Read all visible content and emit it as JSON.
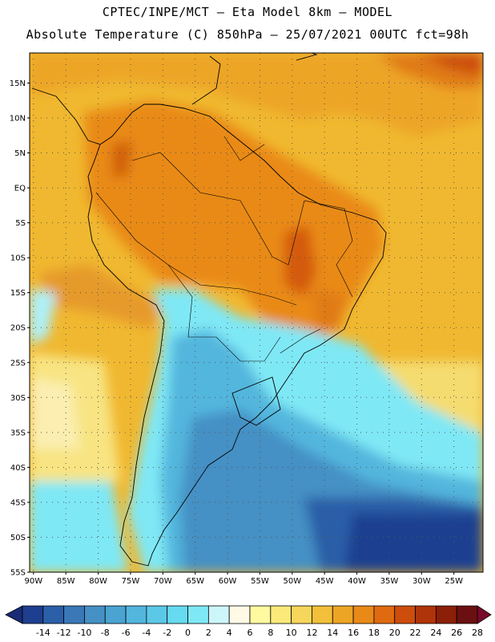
{
  "title_line1": "CPTEC/INPE/MCT –  Eta Model 8km – MODEL",
  "title_line2": "Absolute Temperature (C) 850hPa – 25/07/2021 00UTC fct=98h",
  "lat_labels": [
    "15N",
    "10N",
    "5N",
    "EQ",
    "5S",
    "10S",
    "15S",
    "20S",
    "25S",
    "30S",
    "35S",
    "40S",
    "45S",
    "50S",
    "55S"
  ],
  "lat_values": [
    15,
    10,
    5,
    0,
    -5,
    -10,
    -15,
    -20,
    -25,
    -30,
    -35,
    -40,
    -45,
    -50,
    -55
  ],
  "lon_labels": [
    "90W",
    "85W",
    "80W",
    "75W",
    "70W",
    "65W",
    "60W",
    "55W",
    "50W",
    "45W",
    "40W",
    "35W",
    "30W",
    "25W"
  ],
  "lon_values": [
    -90,
    -85,
    -80,
    -75,
    -70,
    -65,
    -60,
    -55,
    -50,
    -45,
    -40,
    -35,
    -30,
    -25
  ],
  "colorbar": {
    "labels": [
      "-14",
      "-12",
      "-10",
      "-8",
      "-6",
      "-4",
      "-2",
      "0",
      "2",
      "4",
      "6",
      "8",
      "10",
      "12",
      "14",
      "16",
      "18",
      "20",
      "22",
      "24",
      "26",
      "28"
    ],
    "colors": [
      "#1e3f8f",
      "#2b5fa8",
      "#3a78b8",
      "#4590c4",
      "#4aa3d1",
      "#52b6dd",
      "#5cc8e8",
      "#66daf0",
      "#7fe8f5",
      "#cdf6fb",
      "#fff9e6",
      "#fffaa0",
      "#fbe97a",
      "#f7d65c",
      "#f2c03a",
      "#eda525",
      "#e98a18",
      "#e06a10",
      "#cc4d0c",
      "#b0340a",
      "#8b1f08",
      "#6b1010"
    ],
    "under_color": "#1a2a78",
    "over_color": "#7a0a2a"
  },
  "colors": {
    "ocean_warm": "#f2c03a",
    "continent": "#eda525",
    "hot_spot": "#e06a10",
    "cold_ocean": "#4aa3d1",
    "deep_cold": "#1e3f8f",
    "border": "#000000"
  }
}
